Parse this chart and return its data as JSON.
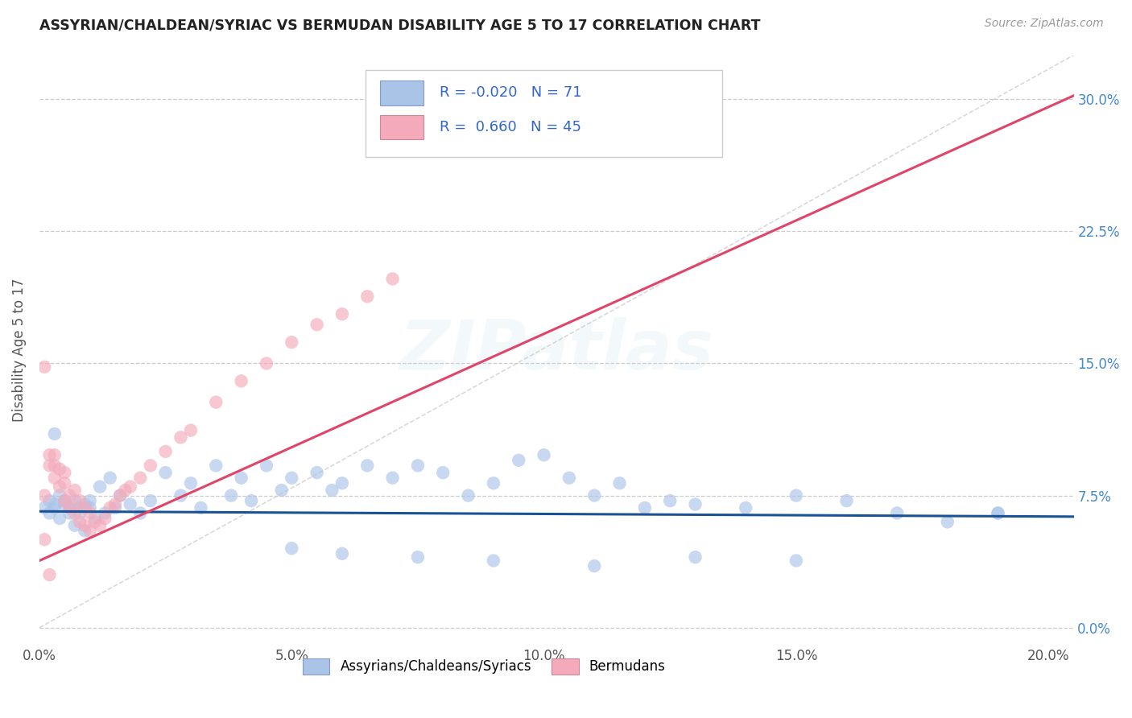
{
  "title": "ASSYRIAN/CHALDEAN/SYRIAC VS BERMUDAN DISABILITY AGE 5 TO 17 CORRELATION CHART",
  "source": "Source: ZipAtlas.com",
  "ylabel": "Disability Age 5 to 17",
  "xlim": [
    0.0,
    0.205
  ],
  "ylim": [
    -0.01,
    0.325
  ],
  "xticks": [
    0.0,
    0.05,
    0.1,
    0.15,
    0.2
  ],
  "xtick_labels": [
    "0.0%",
    "5.0%",
    "10.0%",
    "15.0%",
    "20.0%"
  ],
  "yticks": [
    0.0,
    0.075,
    0.15,
    0.225,
    0.3
  ],
  "ytick_labels": [
    "0.0%",
    "7.5%",
    "15.0%",
    "22.5%",
    "30.0%"
  ],
  "legend_labels": [
    "Assyrians/Chaldeans/Syriacs",
    "Bermudans"
  ],
  "blue_color": "#aac4e8",
  "pink_color": "#f4aabb",
  "blue_line_color": "#1a5296",
  "pink_line_color": "#e04468",
  "diag_color": "#cccccc",
  "grid_color": "#cccccc",
  "background_color": "#ffffff",
  "watermark_text": "ZIPatlas",
  "tick_label_color": "#4488cc",
  "blue_scatter_x": [
    0.001,
    0.002,
    0.002,
    0.003,
    0.003,
    0.004,
    0.004,
    0.005,
    0.005,
    0.006,
    0.006,
    0.007,
    0.007,
    0.008,
    0.008,
    0.009,
    0.009,
    0.01,
    0.01,
    0.011,
    0.012,
    0.013,
    0.014,
    0.015,
    0.016,
    0.018,
    0.02,
    0.022,
    0.025,
    0.028,
    0.03,
    0.032,
    0.035,
    0.038,
    0.04,
    0.042,
    0.045,
    0.048,
    0.05,
    0.055,
    0.058,
    0.06,
    0.065,
    0.07,
    0.075,
    0.08,
    0.085,
    0.09,
    0.095,
    0.1,
    0.105,
    0.11,
    0.115,
    0.12,
    0.125,
    0.13,
    0.14,
    0.15,
    0.16,
    0.17,
    0.18,
    0.19,
    0.05,
    0.06,
    0.075,
    0.09,
    0.11,
    0.13,
    0.15,
    0.19,
    0.003
  ],
  "blue_scatter_y": [
    0.068,
    0.072,
    0.065,
    0.07,
    0.068,
    0.075,
    0.062,
    0.072,
    0.07,
    0.065,
    0.068,
    0.058,
    0.072,
    0.065,
    0.068,
    0.07,
    0.055,
    0.072,
    0.068,
    0.062,
    0.08,
    0.065,
    0.085,
    0.068,
    0.075,
    0.07,
    0.065,
    0.072,
    0.088,
    0.075,
    0.082,
    0.068,
    0.092,
    0.075,
    0.085,
    0.072,
    0.092,
    0.078,
    0.085,
    0.088,
    0.078,
    0.082,
    0.092,
    0.085,
    0.092,
    0.088,
    0.075,
    0.082,
    0.095,
    0.098,
    0.085,
    0.075,
    0.082,
    0.068,
    0.072,
    0.07,
    0.068,
    0.075,
    0.072,
    0.065,
    0.06,
    0.065,
    0.045,
    0.042,
    0.04,
    0.038,
    0.035,
    0.04,
    0.038,
    0.065,
    0.11
  ],
  "pink_scatter_x": [
    0.001,
    0.001,
    0.002,
    0.002,
    0.003,
    0.003,
    0.003,
    0.004,
    0.004,
    0.005,
    0.005,
    0.005,
    0.006,
    0.006,
    0.007,
    0.007,
    0.008,
    0.008,
    0.009,
    0.009,
    0.01,
    0.01,
    0.011,
    0.012,
    0.013,
    0.014,
    0.015,
    0.016,
    0.017,
    0.018,
    0.02,
    0.022,
    0.025,
    0.028,
    0.03,
    0.035,
    0.04,
    0.045,
    0.05,
    0.055,
    0.06,
    0.065,
    0.07,
    0.002,
    0.001
  ],
  "pink_scatter_y": [
    0.148,
    0.075,
    0.092,
    0.098,
    0.085,
    0.092,
    0.098,
    0.08,
    0.09,
    0.072,
    0.082,
    0.088,
    0.068,
    0.075,
    0.065,
    0.078,
    0.06,
    0.072,
    0.058,
    0.068,
    0.055,
    0.065,
    0.06,
    0.058,
    0.062,
    0.068,
    0.07,
    0.075,
    0.078,
    0.08,
    0.085,
    0.092,
    0.1,
    0.108,
    0.112,
    0.128,
    0.14,
    0.15,
    0.162,
    0.172,
    0.178,
    0.188,
    0.198,
    0.03,
    0.05
  ],
  "blue_line_x": [
    0.0,
    0.205
  ],
  "blue_line_y": [
    0.066,
    0.063
  ],
  "pink_line_x": [
    0.0,
    0.205
  ],
  "pink_line_y": [
    0.038,
    0.302
  ],
  "diag_line_x": [
    0.0,
    0.205
  ],
  "diag_line_y": [
    0.0,
    0.325
  ]
}
